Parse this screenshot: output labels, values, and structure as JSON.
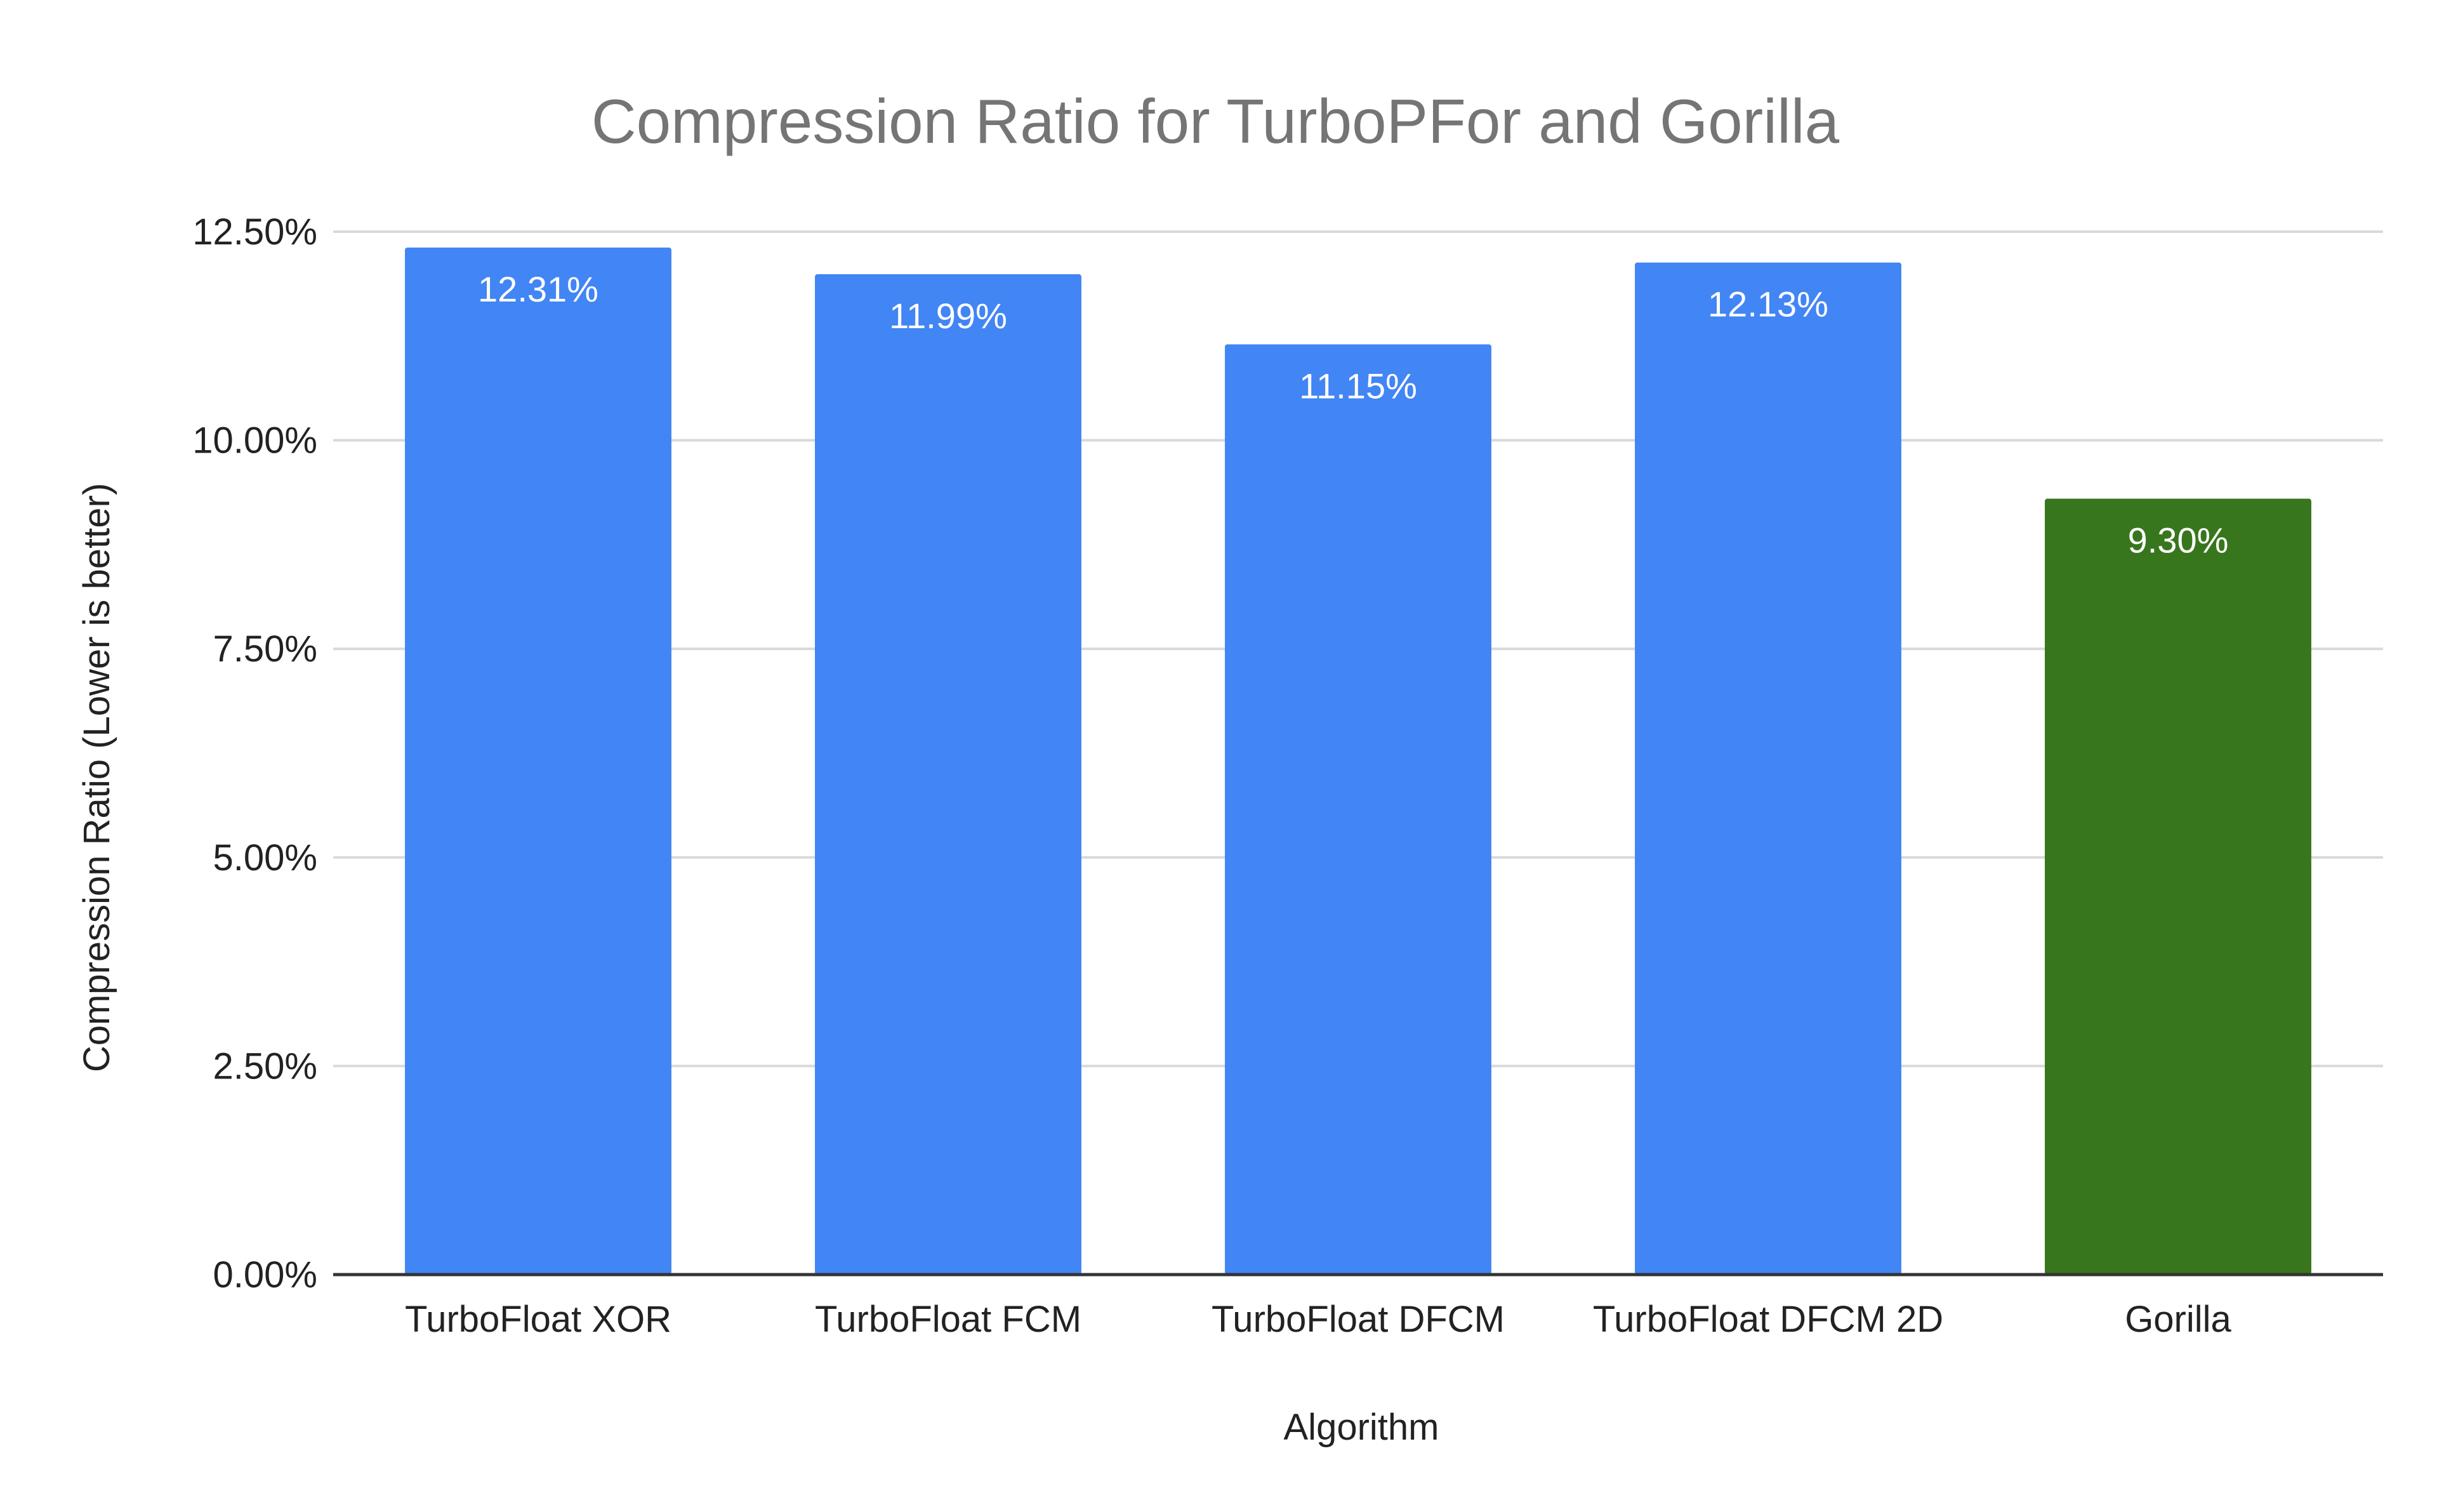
{
  "chart_data": {
    "type": "bar",
    "title": "Compression Ratio for TurboPFor and Gorilla",
    "xlabel": "Algorithm",
    "ylabel": "Compression Ratio (Lower is better)",
    "categories": [
      "TurboFloat XOR",
      "TurboFloat FCM",
      "TurboFloat DFCM",
      "TurboFloat DFCM 2D",
      "Gorilla"
    ],
    "values": [
      12.31,
      11.99,
      11.15,
      12.13,
      9.3
    ],
    "data_labels": [
      "12.31%",
      "11.99%",
      "11.15%",
      "12.13%",
      "9.30%"
    ],
    "bar_colors": [
      "#4285f4",
      "#4285f4",
      "#4285f4",
      "#4285f4",
      "#38761d"
    ],
    "ylim": [
      0,
      12.5
    ],
    "yticks": [
      0,
      2.5,
      5,
      7.5,
      10,
      12.5
    ],
    "ytick_labels": [
      "0.00%",
      "2.50%",
      "5.00%",
      "7.50%",
      "10.00%",
      "12.50%"
    ],
    "grid": true,
    "legend": "none"
  }
}
